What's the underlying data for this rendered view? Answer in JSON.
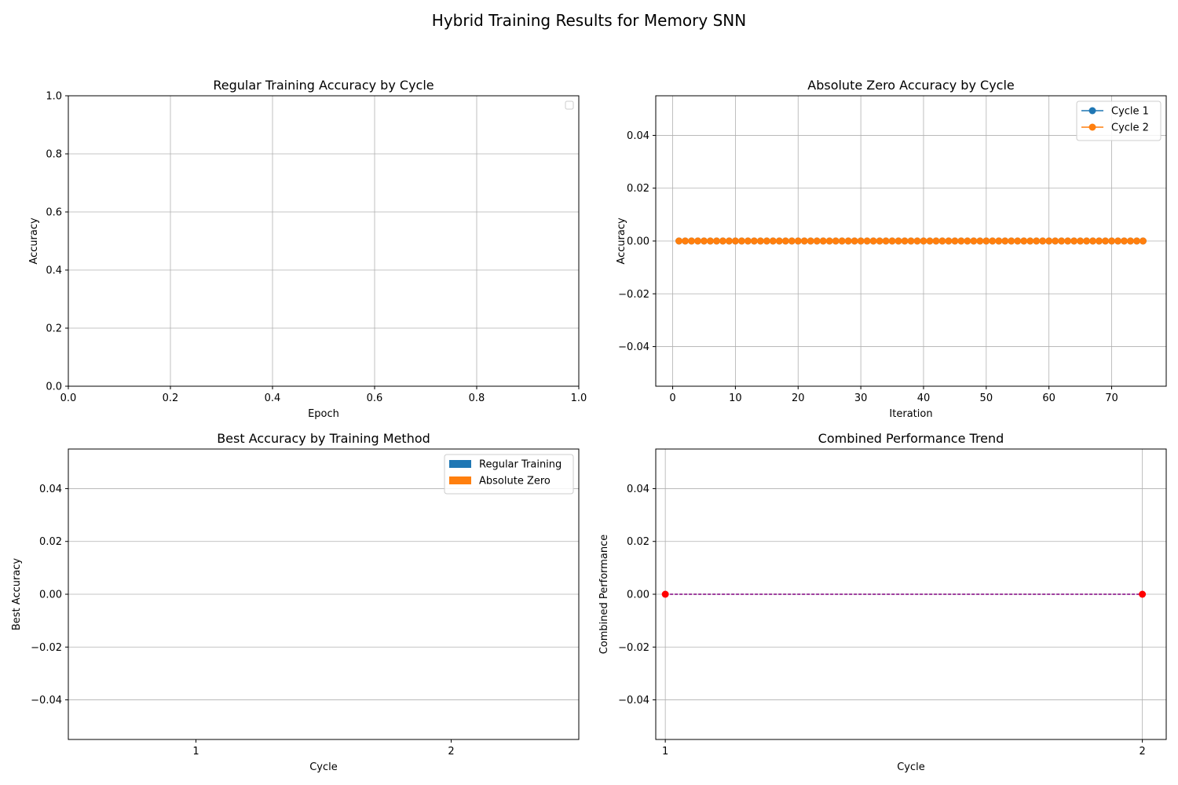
{
  "figure": {
    "title": "Hybrid Training Results for Memory SNN"
  },
  "chart_data": [
    {
      "type": "line",
      "title": "Regular Training Accuracy by Cycle",
      "xlabel": "Epoch",
      "ylabel": "Accuracy",
      "xlim": [
        0,
        1
      ],
      "ylim": [
        0,
        1
      ],
      "xticks": [
        "0.0",
        "0.2",
        "0.4",
        "0.6",
        "0.8",
        "1.0"
      ],
      "yticks": [
        "0.0",
        "0.2",
        "0.4",
        "0.6",
        "0.8",
        "1.0"
      ],
      "grid": true,
      "legend": {
        "placement": "upper right",
        "entries": []
      },
      "series": []
    },
    {
      "type": "line",
      "title": "Absolute Zero Accuracy by Cycle",
      "xlabel": "Iteration",
      "ylabel": "Accuracy",
      "xlim": [
        -2.7,
        78.7
      ],
      "ylim": [
        -0.055,
        0.055
      ],
      "xticks": [
        "0",
        "10",
        "20",
        "30",
        "40",
        "50",
        "60",
        "70"
      ],
      "yticks": [
        "−0.04",
        "−0.02",
        "0.00",
        "0.02",
        "0.04"
      ],
      "grid": true,
      "legend": {
        "placement": "upper right"
      },
      "series": [
        {
          "name": "Cycle 1",
          "color": "#1f77b4",
          "marker": "circle",
          "x": [
            1,
            75
          ],
          "y": [
            0,
            0
          ]
        },
        {
          "name": "Cycle 2",
          "color": "#ff7f0e",
          "marker": "circle",
          "x": [
            1,
            75
          ],
          "y": [
            0,
            0
          ]
        }
      ]
    },
    {
      "type": "bar",
      "title": "Best Accuracy by Training Method",
      "xlabel": "Cycle",
      "ylabel": "Best Accuracy",
      "categories": [
        "1",
        "2"
      ],
      "ylim": [
        -0.055,
        0.055
      ],
      "yticks": [
        "−0.04",
        "−0.02",
        "0.00",
        "0.02",
        "0.04"
      ],
      "grid": "y",
      "legend": {
        "placement": "upper right"
      },
      "series": [
        {
          "name": "Regular Training",
          "color": "#1f77b4",
          "values": [
            0,
            0
          ]
        },
        {
          "name": "Absolute Zero",
          "color": "#ff7f0e",
          "values": [
            0,
            0
          ]
        }
      ]
    },
    {
      "type": "line",
      "title": "Combined Performance Trend",
      "xlabel": "Cycle",
      "ylabel": "Combined Performance",
      "xlim": [
        0.98,
        2.05
      ],
      "ylim": [
        -0.055,
        0.055
      ],
      "xticks": [
        "1",
        "2"
      ],
      "yticks": [
        "−0.04",
        "−0.02",
        "0.00",
        "0.02",
        "0.04"
      ],
      "grid": true,
      "series": [
        {
          "color": "#ff0000",
          "line_color": "#800080",
          "marker": "circle",
          "x": [
            1,
            2
          ],
          "y": [
            0,
            0
          ]
        }
      ]
    }
  ]
}
